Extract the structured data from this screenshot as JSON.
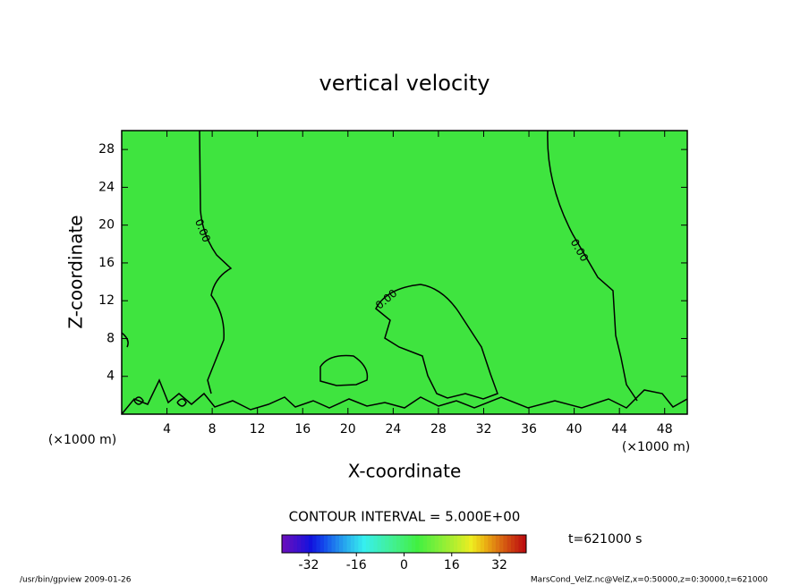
{
  "chart_data": {
    "type": "contour",
    "title": "vertical velocity",
    "x_label": "X-coordinate",
    "y_label": "Z-coordinate",
    "x_unit": "(×1000 m)",
    "y_unit": "(×1000 m)",
    "xlim": [
      0,
      50
    ],
    "xticks": [
      4,
      8,
      12,
      16,
      20,
      24,
      28,
      32,
      36,
      40,
      44,
      48
    ],
    "ylim": [
      0,
      30
    ],
    "yticks": [
      4,
      8,
      12,
      16,
      20,
      24,
      28
    ],
    "fill_color": "#3fe43f",
    "contour": {
      "level": 0,
      "label": "0.00",
      "color": "#000000"
    },
    "contour_interval": "CONTOUR INTERVAL = 5.000E+00",
    "time": "t=621000 s",
    "colorbar": {
      "lim": [
        -41,
        41
      ],
      "ticks": [
        -32,
        -16,
        0,
        16,
        32
      ]
    },
    "footer_left": "/usr/bin/gpview  2009-01-26",
    "footer_right": "MarsCond_VelZ.nc@VelZ,x=0:50000,z=0:30000,t=621000"
  }
}
